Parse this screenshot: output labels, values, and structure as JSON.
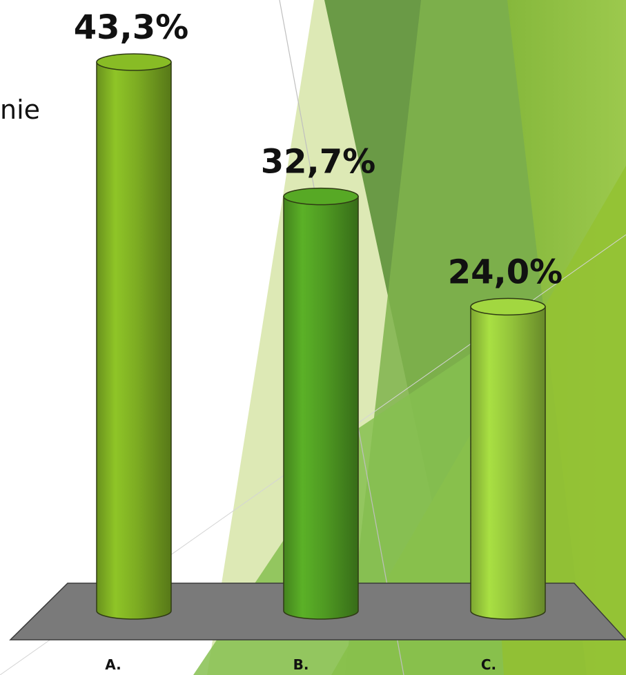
{
  "slide": {
    "clipped_text": "nie",
    "colors": {
      "bg": "#ffffff",
      "floor": "#7a7a7a",
      "text": "#111111",
      "deco_dark": "#5f8f3f",
      "deco_mid": "#78b546",
      "deco_light": "#9bc84a",
      "deco_pale": "#dfeab8"
    }
  },
  "chart_data": {
    "type": "bar",
    "style": "3d-cylinder",
    "categories": [
      "A.",
      "B.",
      "C."
    ],
    "values": [
      43.3,
      32.7,
      24.0
    ],
    "value_labels": [
      "43,3%",
      "32,7%",
      "24,0%"
    ],
    "bar_colors": [
      "#7cab22",
      "#4f9a22",
      "#93c33a"
    ],
    "title": "",
    "xlabel": "",
    "ylabel": "",
    "grid": false,
    "legend": "none"
  }
}
